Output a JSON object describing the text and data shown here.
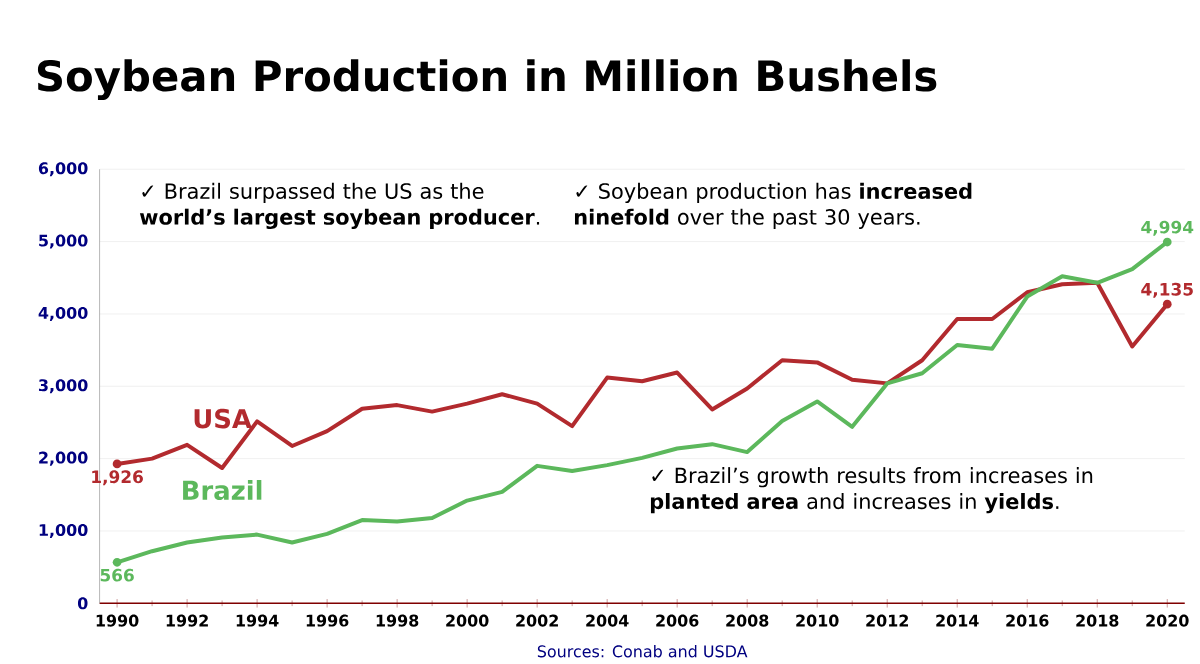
{
  "chart_data": {
    "type": "line",
    "title": "Soybean Production in Million Bushels",
    "x": [
      1990,
      1991,
      1992,
      1993,
      1994,
      1995,
      1996,
      1997,
      1998,
      1999,
      2000,
      2001,
      2002,
      2003,
      2004,
      2005,
      2006,
      2007,
      2008,
      2009,
      2010,
      2011,
      2012,
      2013,
      2014,
      2015,
      2016,
      2017,
      2018,
      2019,
      2020
    ],
    "series": [
      {
        "name": "USA",
        "color": "#b22a2e",
        "values": [
          1926,
          2000,
          2190,
          1870,
          2515,
          2175,
          2380,
          2690,
          2740,
          2650,
          2760,
          2890,
          2760,
          2450,
          3120,
          3070,
          3190,
          2680,
          2970,
          3360,
          3330,
          3090,
          3040,
          3360,
          3930,
          3930,
          4300,
          4410,
          4430,
          3550,
          4135
        ],
        "value_labels": [
          "1,926",
          null,
          null,
          null,
          null,
          null,
          null,
          null,
          null,
          null,
          null,
          null,
          null,
          null,
          null,
          null,
          null,
          null,
          null,
          null,
          null,
          null,
          null,
          null,
          null,
          null,
          null,
          null,
          null,
          null,
          "4,135"
        ]
      },
      {
        "name": "Brazil",
        "color": "#5cb85c",
        "values": [
          566,
          720,
          840,
          910,
          950,
          840,
          960,
          1150,
          1130,
          1180,
          1420,
          1540,
          1900,
          1830,
          1910,
          2010,
          2140,
          2200,
          2090,
          2520,
          2790,
          2440,
          3040,
          3180,
          3570,
          3520,
          4240,
          4520,
          4430,
          4620,
          4994
        ],
        "value_labels": [
          "566",
          null,
          null,
          null,
          null,
          null,
          null,
          null,
          null,
          null,
          null,
          null,
          null,
          null,
          null,
          null,
          null,
          null,
          null,
          null,
          null,
          null,
          null,
          null,
          null,
          null,
          null,
          null,
          null,
          null,
          "4,994"
        ]
      }
    ],
    "xlim": [
      1989.5,
      2020.5
    ],
    "xticks": [
      1990,
      1992,
      1994,
      1996,
      1998,
      2000,
      2002,
      2004,
      2006,
      2008,
      2010,
      2012,
      2014,
      2016,
      2018,
      2020
    ],
    "ylim": [
      0,
      6000
    ],
    "yticks": [
      {
        "value": 0,
        "label": "0"
      },
      {
        "value": 1000,
        "label": "1,000"
      },
      {
        "value": 2000,
        "label": "2,000"
      },
      {
        "value": 3000,
        "label": "3,000"
      },
      {
        "value": 4000,
        "label": "4,000"
      },
      {
        "value": 5000,
        "label": "5,000"
      },
      {
        "value": 6000,
        "label": "6,000"
      }
    ],
    "grid": "y",
    "legend": false,
    "line_style": "solid",
    "annotations": [
      "✓ Brazil surpassed the US as the **world’s largest soybean producer**.",
      "✓ Soybean production has **increased ninefold** over the past 30 years.",
      "✓ Brazil’s growth results from increases in **planted area** and increases in **yields**.",
      "Sources: Conab and USDA"
    ]
  }
}
